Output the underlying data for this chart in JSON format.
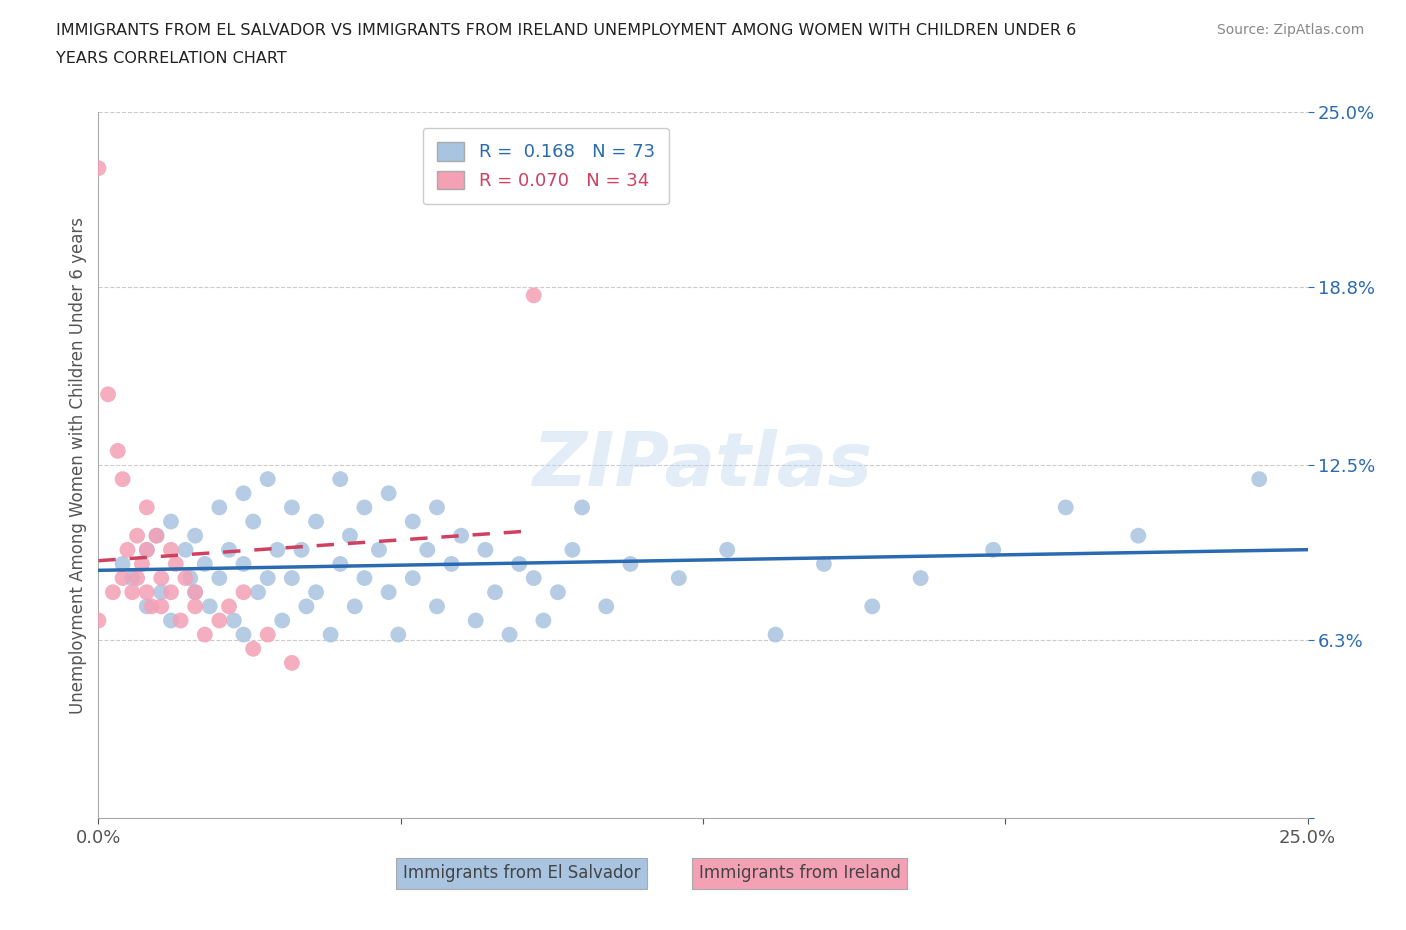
{
  "title": "IMMIGRANTS FROM EL SALVADOR VS IMMIGRANTS FROM IRELAND UNEMPLOYMENT AMONG WOMEN WITH CHILDREN UNDER 6\nYEARS CORRELATION CHART",
  "source": "Source: ZipAtlas.com",
  "ylabel": "Unemployment Among Women with Children Under 6 years",
  "xlabel_label1": "Immigrants from El Salvador",
  "xlabel_label2": "Immigrants from Ireland",
  "legend_r1": "R =  0.168",
  "legend_n1": "N = 73",
  "legend_r2": "R = 0.070",
  "legend_n2": "N = 34",
  "xlim": [
    0.0,
    0.25
  ],
  "ylim": [
    0.0,
    0.25
  ],
  "yticks": [
    0.0,
    0.063,
    0.125,
    0.188,
    0.25
  ],
  "ytick_labels": [
    "",
    "6.3%",
    "12.5%",
    "18.8%",
    "25.0%"
  ],
  "xticks": [
    0.0,
    0.0625,
    0.125,
    0.1875,
    0.25
  ],
  "xtick_labels": [
    "0.0%",
    "",
    "",
    "",
    "25.0%"
  ],
  "color_el_salvador": "#a8c4e0",
  "color_ireland": "#f4a0b5",
  "color_line_el_salvador": "#2a6ab0",
  "color_line_ireland": "#d04060",
  "background_color": "#ffffff",
  "watermark": "ZIPatlas",
  "el_salvador_x": [
    0.005,
    0.007,
    0.01,
    0.01,
    0.012,
    0.013,
    0.015,
    0.015,
    0.018,
    0.019,
    0.02,
    0.02,
    0.022,
    0.023,
    0.025,
    0.025,
    0.027,
    0.028,
    0.03,
    0.03,
    0.03,
    0.032,
    0.033,
    0.035,
    0.035,
    0.037,
    0.038,
    0.04,
    0.04,
    0.042,
    0.043,
    0.045,
    0.045,
    0.048,
    0.05,
    0.05,
    0.052,
    0.053,
    0.055,
    0.055,
    0.058,
    0.06,
    0.06,
    0.062,
    0.065,
    0.065,
    0.068,
    0.07,
    0.07,
    0.073,
    0.075,
    0.078,
    0.08,
    0.082,
    0.085,
    0.087,
    0.09,
    0.092,
    0.095,
    0.098,
    0.1,
    0.105,
    0.11,
    0.12,
    0.13,
    0.14,
    0.15,
    0.16,
    0.17,
    0.185,
    0.2,
    0.215,
    0.24
  ],
  "el_salvador_y": [
    0.09,
    0.085,
    0.095,
    0.075,
    0.1,
    0.08,
    0.105,
    0.07,
    0.095,
    0.085,
    0.1,
    0.08,
    0.09,
    0.075,
    0.11,
    0.085,
    0.095,
    0.07,
    0.115,
    0.09,
    0.065,
    0.105,
    0.08,
    0.12,
    0.085,
    0.095,
    0.07,
    0.11,
    0.085,
    0.095,
    0.075,
    0.105,
    0.08,
    0.065,
    0.12,
    0.09,
    0.1,
    0.075,
    0.11,
    0.085,
    0.095,
    0.115,
    0.08,
    0.065,
    0.105,
    0.085,
    0.095,
    0.11,
    0.075,
    0.09,
    0.1,
    0.07,
    0.095,
    0.08,
    0.065,
    0.09,
    0.085,
    0.07,
    0.08,
    0.095,
    0.11,
    0.075,
    0.09,
    0.085,
    0.095,
    0.065,
    0.09,
    0.075,
    0.085,
    0.095,
    0.11,
    0.1,
    0.12
  ],
  "ireland_x": [
    0.0,
    0.0,
    0.002,
    0.003,
    0.004,
    0.005,
    0.005,
    0.006,
    0.007,
    0.008,
    0.008,
    0.009,
    0.01,
    0.01,
    0.01,
    0.011,
    0.012,
    0.013,
    0.013,
    0.015,
    0.015,
    0.016,
    0.017,
    0.018,
    0.02,
    0.02,
    0.022,
    0.025,
    0.027,
    0.03,
    0.032,
    0.035,
    0.04,
    0.09
  ],
  "ireland_y": [
    0.23,
    0.07,
    0.15,
    0.08,
    0.13,
    0.12,
    0.085,
    0.095,
    0.08,
    0.1,
    0.085,
    0.09,
    0.11,
    0.095,
    0.08,
    0.075,
    0.1,
    0.085,
    0.075,
    0.095,
    0.08,
    0.09,
    0.07,
    0.085,
    0.08,
    0.075,
    0.065,
    0.07,
    0.075,
    0.08,
    0.06,
    0.065,
    0.055,
    0.185
  ]
}
